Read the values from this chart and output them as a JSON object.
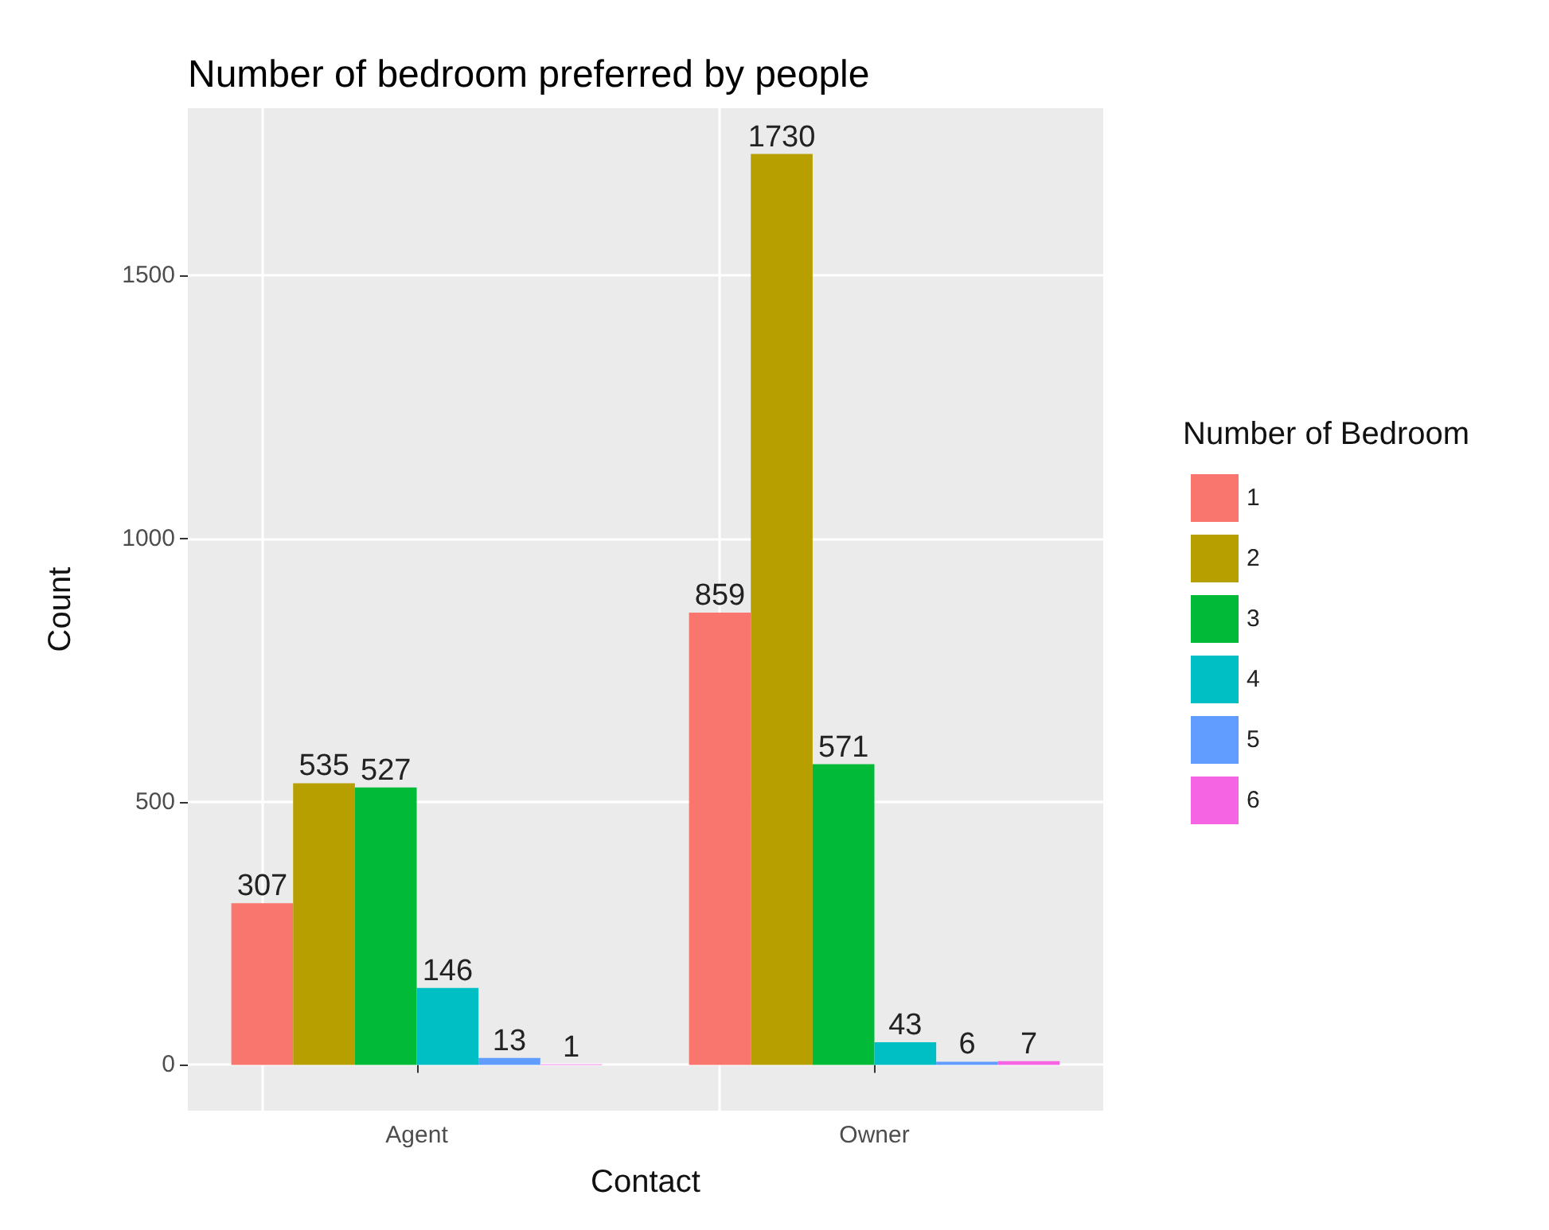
{
  "chart_data": {
    "type": "bar",
    "title": "Number of bedroom preferred by people",
    "xlabel": "Contact",
    "ylabel": "Count",
    "legend_title": "Number of Bedroom",
    "categories": [
      "Agent",
      "Owner"
    ],
    "series": [
      {
        "name": "1",
        "color": "#f8766d",
        "values": [
          307,
          859
        ]
      },
      {
        "name": "2",
        "color": "#b79f00",
        "values": [
          535,
          1730
        ]
      },
      {
        "name": "3",
        "color": "#00ba38",
        "values": [
          527,
          571
        ]
      },
      {
        "name": "4",
        "color": "#00bfc4",
        "values": [
          146,
          43
        ]
      },
      {
        "name": "5",
        "color": "#619cff",
        "values": [
          13,
          6
        ]
      },
      {
        "name": "6",
        "color": "#f564e3",
        "values": [
          1,
          7
        ]
      }
    ],
    "ylim": [
      -87,
      1817
    ],
    "yticks": [
      0,
      500,
      1000,
      1500
    ],
    "grid": true,
    "legend": "right",
    "data_labels": true
  }
}
